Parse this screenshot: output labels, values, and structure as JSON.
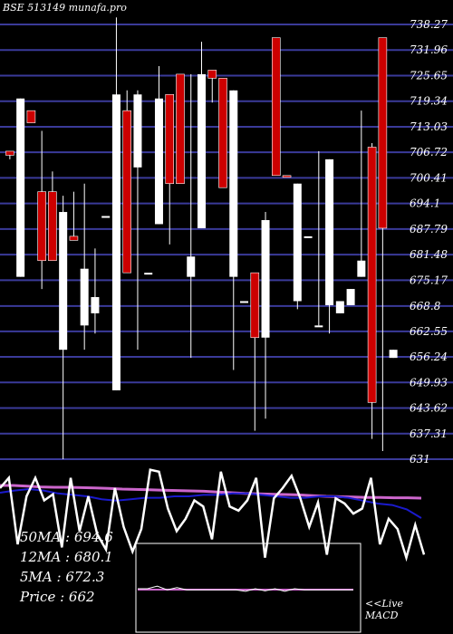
{
  "header": {
    "title": "BSE 513149 munafa.pro"
  },
  "stats": {
    "ma50": "50MA : 694.6",
    "ma12": "12MA : 680.1",
    "ma5": "5MA : 672.3",
    "price": "Price   : 662"
  },
  "macd_panel": {
    "line1": "<<Live",
    "line2": "MACD"
  },
  "colors": {
    "background": "#000000",
    "grid": "#3a3a99",
    "up": "#ffffff",
    "down": "#cc0000",
    "ma_slow": "#cc66cc",
    "ma_mid": "#1a1acc",
    "line": "#ffffff"
  },
  "chart_data": {
    "type": "candlestick",
    "y_ticks": [
      738.27,
      731.96,
      725.65,
      719.34,
      713.03,
      706.72,
      700.41,
      694.1,
      687.79,
      681.48,
      675.17,
      668.8,
      662.55,
      656.24,
      649.93,
      643.62,
      637.31,
      631
    ],
    "ylim": [
      631,
      738.27
    ],
    "candles": [
      {
        "o": 707,
        "c": 706,
        "h": 707,
        "l": 705,
        "color": "down"
      },
      {
        "o": 676,
        "c": 720,
        "h": 720,
        "l": 676,
        "color": "up"
      },
      {
        "o": 717,
        "c": 714,
        "h": 717,
        "l": 714,
        "color": "down"
      },
      {
        "o": 697,
        "c": 680,
        "h": 712,
        "l": 673,
        "color": "down"
      },
      {
        "o": 680,
        "c": 697,
        "h": 702,
        "l": 680,
        "color": "down"
      },
      {
        "o": 658,
        "c": 692,
        "h": 696,
        "l": 631,
        "color": "up"
      },
      {
        "o": 686,
        "c": 685,
        "h": 697,
        "l": 685,
        "color": "down"
      },
      {
        "o": 664,
        "c": 678,
        "h": 699,
        "l": 658,
        "color": "up"
      },
      {
        "o": 667,
        "c": 671,
        "h": 683,
        "l": 662,
        "color": "up"
      },
      {
        "o": 691,
        "c": 691,
        "h": 691,
        "l": 691,
        "color": "up"
      },
      {
        "o": 648,
        "c": 721,
        "h": 740,
        "l": 648,
        "color": "up"
      },
      {
        "o": 677,
        "c": 717,
        "h": 722,
        "l": 677,
        "color": "down"
      },
      {
        "o": 703,
        "c": 721,
        "h": 722,
        "l": 658,
        "color": "up"
      },
      {
        "o": 677,
        "c": 677,
        "h": 677,
        "l": 677,
        "color": "up"
      },
      {
        "o": 689,
        "c": 720,
        "h": 728,
        "l": 689,
        "color": "up"
      },
      {
        "o": 699,
        "c": 721,
        "h": 721,
        "l": 684,
        "color": "down"
      },
      {
        "o": 699,
        "c": 726,
        "h": 726,
        "l": 699,
        "color": "down"
      },
      {
        "o": 676,
        "c": 681,
        "h": 726,
        "l": 656,
        "color": "up"
      },
      {
        "o": 688,
        "c": 726,
        "h": 734,
        "l": 688,
        "color": "up"
      },
      {
        "o": 725,
        "c": 727,
        "h": 727,
        "l": 719,
        "color": "down"
      },
      {
        "o": 698,
        "c": 725,
        "h": 725,
        "l": 698,
        "color": "down"
      },
      {
        "o": 676,
        "c": 722,
        "h": 722,
        "l": 653,
        "color": "up"
      },
      {
        "o": 670,
        "c": 670,
        "h": 670,
        "l": 670,
        "color": "up"
      },
      {
        "o": 677,
        "c": 661,
        "h": 677,
        "l": 638,
        "color": "down"
      },
      {
        "o": 661,
        "c": 690,
        "h": 692,
        "l": 641,
        "color": "up"
      },
      {
        "o": 701,
        "c": 735,
        "h": 735,
        "l": 701,
        "color": "down"
      },
      {
        "o": 701,
        "c": 701,
        "h": 701,
        "l": 701,
        "color": "down"
      },
      {
        "o": 670,
        "c": 699,
        "h": 699,
        "l": 668,
        "color": "up"
      },
      {
        "o": 686,
        "c": 686,
        "h": 686,
        "l": 686,
        "color": "up"
      },
      {
        "o": 664,
        "c": 664,
        "h": 707,
        "l": 664,
        "color": "up"
      },
      {
        "o": 669,
        "c": 705,
        "h": 705,
        "l": 662,
        "color": "up"
      },
      {
        "o": 667,
        "c": 670,
        "h": 670,
        "l": 667,
        "color": "up"
      },
      {
        "o": 669,
        "c": 673,
        "h": 673,
        "l": 669,
        "color": "up"
      },
      {
        "o": 676,
        "c": 680,
        "h": 717,
        "l": 676,
        "color": "up"
      },
      {
        "o": 708,
        "c": 645,
        "h": 709,
        "l": 636,
        "color": "down"
      },
      {
        "o": 688,
        "c": 735,
        "h": 735,
        "l": 633,
        "color": "down"
      },
      {
        "o": 656,
        "c": 658,
        "h": 658,
        "l": 656,
        "color": "up"
      }
    ],
    "indicator_line": [
      0.3,
      0.2,
      0.85,
      0.38,
      0.2,
      0.42,
      0.36,
      0.88,
      0.2,
      0.72,
      0.38,
      0.75,
      0.9,
      0.3,
      0.68,
      0.92,
      0.7,
      0.12,
      0.14,
      0.5,
      0.72,
      0.6,
      0.42,
      0.48,
      0.8,
      0.14,
      0.48,
      0.52,
      0.42,
      0.2,
      0.98,
      0.4,
      0.3,
      0.18,
      0.4,
      0.68,
      0.44,
      0.95,
      0.4,
      0.45,
      0.55,
      0.5,
      0.2,
      0.85,
      0.6,
      0.7,
      0.98,
      0.66,
      0.95
    ],
    "ma_slow_line": [
      0.4,
      0.4,
      0.42,
      0.44,
      0.45,
      0.45,
      0.46,
      0.47,
      0.48,
      0.5,
      0.51,
      0.52,
      0.53,
      0.54,
      0.55,
      0.56,
      0.58,
      0.6,
      0.62,
      0.63,
      0.64,
      0.65,
      0.66,
      0.68,
      0.7,
      0.71,
      0.72,
      0.73,
      0.73,
      0.74,
      0.74,
      0.75
    ],
    "ma_mid_line": [
      0.55,
      0.52,
      0.5,
      0.52,
      0.56,
      0.58,
      0.6,
      0.64,
      0.66,
      0.64,
      0.62,
      0.62,
      0.6,
      0.6,
      0.58,
      0.58,
      0.56,
      0.56,
      0.58,
      0.6,
      0.62,
      0.62,
      0.6,
      0.6,
      0.62,
      0.66,
      0.7,
      0.72,
      0.78,
      0.9
    ],
    "macd_line": [
      0.5,
      0.5,
      0.38,
      0.55,
      0.45,
      0.55,
      0.55,
      0.55,
      0.55,
      0.55,
      0.55,
      0.62,
      0.5,
      0.6,
      0.5,
      0.62,
      0.5,
      0.55,
      0.55,
      0.55,
      0.55,
      0.55,
      0.55
    ]
  }
}
